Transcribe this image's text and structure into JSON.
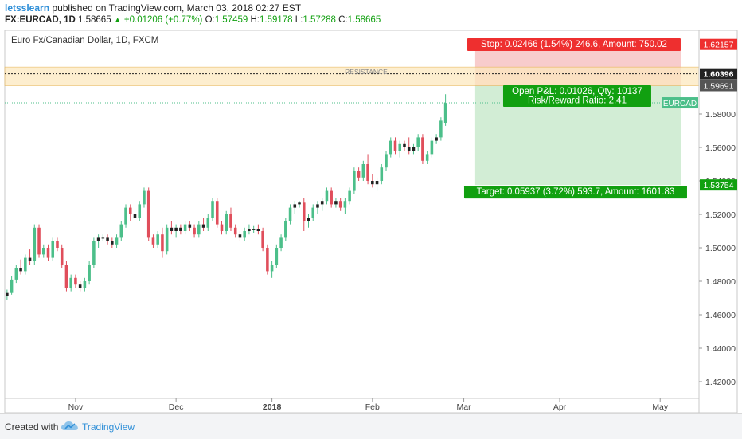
{
  "header": {
    "author": "letsslearn",
    "published": "published on TradingView.com, March 03, 2018 02:27 EST",
    "symbol": "FX:EURCAD, 1D",
    "last": "1.58665",
    "change_icon": "triangle-up-icon",
    "change": "+0.01206 (+0.77%)",
    "o_label": "O:",
    "o_value": "1.57459",
    "h_label": "H:",
    "h_value": "1.59178",
    "l_label": "L:",
    "l_value": "1.57288",
    "c_label": "C:",
    "c_value": "1.58665"
  },
  "footer": {
    "created": "Created with",
    "logo_icon": "tradingview-cloud-icon",
    "brand": "TradingView"
  },
  "chart_data": {
    "type": "candlestick",
    "title": "Euro Fx/Canadian Dollar, 1D, FXCM",
    "ylim": [
      1.41,
      1.63
    ],
    "y_ticks": [
      "1.42000",
      "1.44000",
      "1.46000",
      "1.48000",
      "1.50000",
      "1.52000",
      "1.54000",
      "1.56000",
      "1.58000"
    ],
    "x_ticks": [
      {
        "label": "Nov",
        "index": 15,
        "bold": false
      },
      {
        "label": "Dec",
        "index": 37,
        "bold": false
      },
      {
        "label": "2018",
        "index": 58,
        "bold": true
      },
      {
        "label": "Feb",
        "index": 80,
        "bold": false
      },
      {
        "label": "Mar",
        "index": 100,
        "bold": false
      },
      {
        "label": "Apr",
        "index": 121,
        "bold": false
      },
      {
        "label": "May",
        "index": 143,
        "bold": false
      }
    ],
    "total_slots": 152,
    "candles": [
      [
        1.471,
        1.475,
        1.469,
        1.473
      ],
      [
        1.473,
        1.483,
        1.472,
        1.481
      ],
      [
        1.481,
        1.49,
        1.479,
        1.488
      ],
      [
        1.488,
        1.493,
        1.484,
        1.486
      ],
      [
        1.486,
        1.496,
        1.484,
        1.494
      ],
      [
        1.494,
        1.499,
        1.49,
        1.492
      ],
      [
        1.492,
        1.514,
        1.49,
        1.512
      ],
      [
        1.512,
        1.514,
        1.494,
        1.496
      ],
      [
        1.496,
        1.502,
        1.494,
        1.5
      ],
      [
        1.5,
        1.502,
        1.492,
        1.494
      ],
      [
        1.494,
        1.506,
        1.492,
        1.504
      ],
      [
        1.504,
        1.506,
        1.498,
        1.5
      ],
      [
        1.5,
        1.502,
        1.488,
        1.49
      ],
      [
        1.49,
        1.492,
        1.474,
        1.476
      ],
      [
        1.476,
        1.484,
        1.474,
        1.482
      ],
      [
        1.482,
        1.484,
        1.476,
        1.478
      ],
      [
        1.478,
        1.48,
        1.474,
        1.476
      ],
      [
        1.476,
        1.482,
        1.474,
        1.48
      ],
      [
        1.48,
        1.492,
        1.478,
        1.49
      ],
      [
        1.49,
        1.506,
        1.488,
        1.504
      ],
      [
        1.504,
        1.508,
        1.5,
        1.506
      ],
      [
        1.506,
        1.508,
        1.504,
        1.506
      ],
      [
        1.506,
        1.508,
        1.502,
        1.504
      ],
      [
        1.504,
        1.506,
        1.5,
        1.502
      ],
      [
        1.502,
        1.508,
        1.5,
        1.506
      ],
      [
        1.506,
        1.516,
        1.504,
        1.514
      ],
      [
        1.514,
        1.526,
        1.512,
        1.524
      ],
      [
        1.524,
        1.526,
        1.516,
        1.52
      ],
      [
        1.52,
        1.522,
        1.514,
        1.518
      ],
      [
        1.518,
        1.528,
        1.516,
        1.526
      ],
      [
        1.526,
        1.536,
        1.524,
        1.534
      ],
      [
        1.534,
        1.536,
        1.504,
        1.506
      ],
      [
        1.506,
        1.508,
        1.5,
        1.502
      ],
      [
        1.502,
        1.51,
        1.5,
        1.508
      ],
      [
        1.508,
        1.512,
        1.494,
        1.498
      ],
      [
        1.498,
        1.514,
        1.496,
        1.512
      ],
      [
        1.512,
        1.516,
        1.508,
        1.51
      ],
      [
        1.51,
        1.514,
        1.506,
        1.512
      ],
      [
        1.512,
        1.514,
        1.508,
        1.51
      ],
      [
        1.51,
        1.516,
        1.508,
        1.514
      ],
      [
        1.514,
        1.516,
        1.51,
        1.512
      ],
      [
        1.512,
        1.514,
        1.506,
        1.508
      ],
      [
        1.508,
        1.516,
        1.506,
        1.514
      ],
      [
        1.514,
        1.518,
        1.51,
        1.512
      ],
      [
        1.512,
        1.52,
        1.51,
        1.518
      ],
      [
        1.518,
        1.53,
        1.516,
        1.528
      ],
      [
        1.528,
        1.53,
        1.512,
        1.514
      ],
      [
        1.514,
        1.516,
        1.508,
        1.51
      ],
      [
        1.51,
        1.522,
        1.508,
        1.52
      ],
      [
        1.52,
        1.524,
        1.51,
        1.512
      ],
      [
        1.512,
        1.514,
        1.506,
        1.508
      ],
      [
        1.508,
        1.51,
        1.504,
        1.506
      ],
      [
        1.506,
        1.512,
        1.504,
        1.51
      ],
      [
        1.51,
        1.514,
        1.508,
        1.511
      ],
      [
        1.511,
        1.513,
        1.509,
        1.511
      ],
      [
        1.511,
        1.514,
        1.508,
        1.51
      ],
      [
        1.51,
        1.512,
        1.498,
        1.5
      ],
      [
        1.5,
        1.502,
        1.484,
        1.486
      ],
      [
        1.486,
        1.492,
        1.482,
        1.49
      ],
      [
        1.49,
        1.502,
        1.488,
        1.5
      ],
      [
        1.5,
        1.508,
        1.498,
        1.506
      ],
      [
        1.506,
        1.518,
        1.504,
        1.516
      ],
      [
        1.516,
        1.526,
        1.514,
        1.524
      ],
      [
        1.524,
        1.528,
        1.52,
        1.526
      ],
      [
        1.526,
        1.528,
        1.524,
        1.527
      ],
      [
        1.527,
        1.53,
        1.51,
        1.516
      ],
      [
        1.516,
        1.52,
        1.512,
        1.518
      ],
      [
        1.518,
        1.526,
        1.516,
        1.524
      ],
      [
        1.524,
        1.528,
        1.52,
        1.526
      ],
      [
        1.526,
        1.53,
        1.522,
        1.528
      ],
      [
        1.528,
        1.536,
        1.526,
        1.534
      ],
      [
        1.534,
        1.536,
        1.524,
        1.526
      ],
      [
        1.526,
        1.53,
        1.524,
        1.528
      ],
      [
        1.528,
        1.53,
        1.522,
        1.524
      ],
      [
        1.524,
        1.53,
        1.52,
        1.528
      ],
      [
        1.528,
        1.536,
        1.526,
        1.534
      ],
      [
        1.534,
        1.548,
        1.532,
        1.546
      ],
      [
        1.546,
        1.548,
        1.54,
        1.542
      ],
      [
        1.542,
        1.552,
        1.54,
        1.55
      ],
      [
        1.55,
        1.556,
        1.538,
        1.54
      ],
      [
        1.54,
        1.544,
        1.536,
        1.538
      ],
      [
        1.538,
        1.542,
        1.534,
        1.54
      ],
      [
        1.54,
        1.55,
        1.538,
        1.548
      ],
      [
        1.548,
        1.558,
        1.546,
        1.556
      ],
      [
        1.556,
        1.566,
        1.554,
        1.564
      ],
      [
        1.564,
        1.566,
        1.556,
        1.558
      ],
      [
        1.558,
        1.564,
        1.554,
        1.562
      ],
      [
        1.562,
        1.564,
        1.558,
        1.56
      ],
      [
        1.56,
        1.566,
        1.556,
        1.558
      ],
      [
        1.558,
        1.562,
        1.556,
        1.56
      ],
      [
        1.56,
        1.568,
        1.558,
        1.566
      ],
      [
        1.566,
        1.568,
        1.55,
        1.552
      ],
      [
        1.552,
        1.558,
        1.55,
        1.556
      ],
      [
        1.556,
        1.566,
        1.554,
        1.564
      ],
      [
        1.564,
        1.568,
        1.562,
        1.566
      ],
      [
        1.566,
        1.578,
        1.564,
        1.576
      ],
      [
        1.5745,
        1.5918,
        1.5729,
        1.5866
      ]
    ],
    "resistance": {
      "label": "RESISTANCE",
      "upper": 1.608,
      "lower": 1.5969,
      "line": 1.60396
    },
    "position": {
      "entry": 1.59691,
      "stop": 1.62157,
      "target": 1.53754,
      "last": 1.58665,
      "start_index": 103,
      "end_index": 147,
      "stop_text": "Stop: 0.02466 (1.54%) 246.6, Amount: 750.02",
      "pnl_text": "Open P&L: 0.01026, Qty: 10137",
      "rr_text": "Risk/Reward Ratio: 2.41",
      "target_text": "Target: 0.05937 (3.72%) 593.7, Amount: 1601.83"
    },
    "price_labels": {
      "stop": "1.62157",
      "resistance": "1.60396",
      "entry": "1.59691",
      "target": "1.53754",
      "symbol_tag": "EURCAD"
    },
    "colors": {
      "up": "#4cbf8a",
      "down": "#e04e5b",
      "stop_fill": "#f7c6c6",
      "target_fill": "#cdebd0",
      "resistance_fill": "#fde9bf",
      "axis_text": "#444444",
      "label_green": "#11a010",
      "label_red": "#ee2f2f"
    }
  }
}
